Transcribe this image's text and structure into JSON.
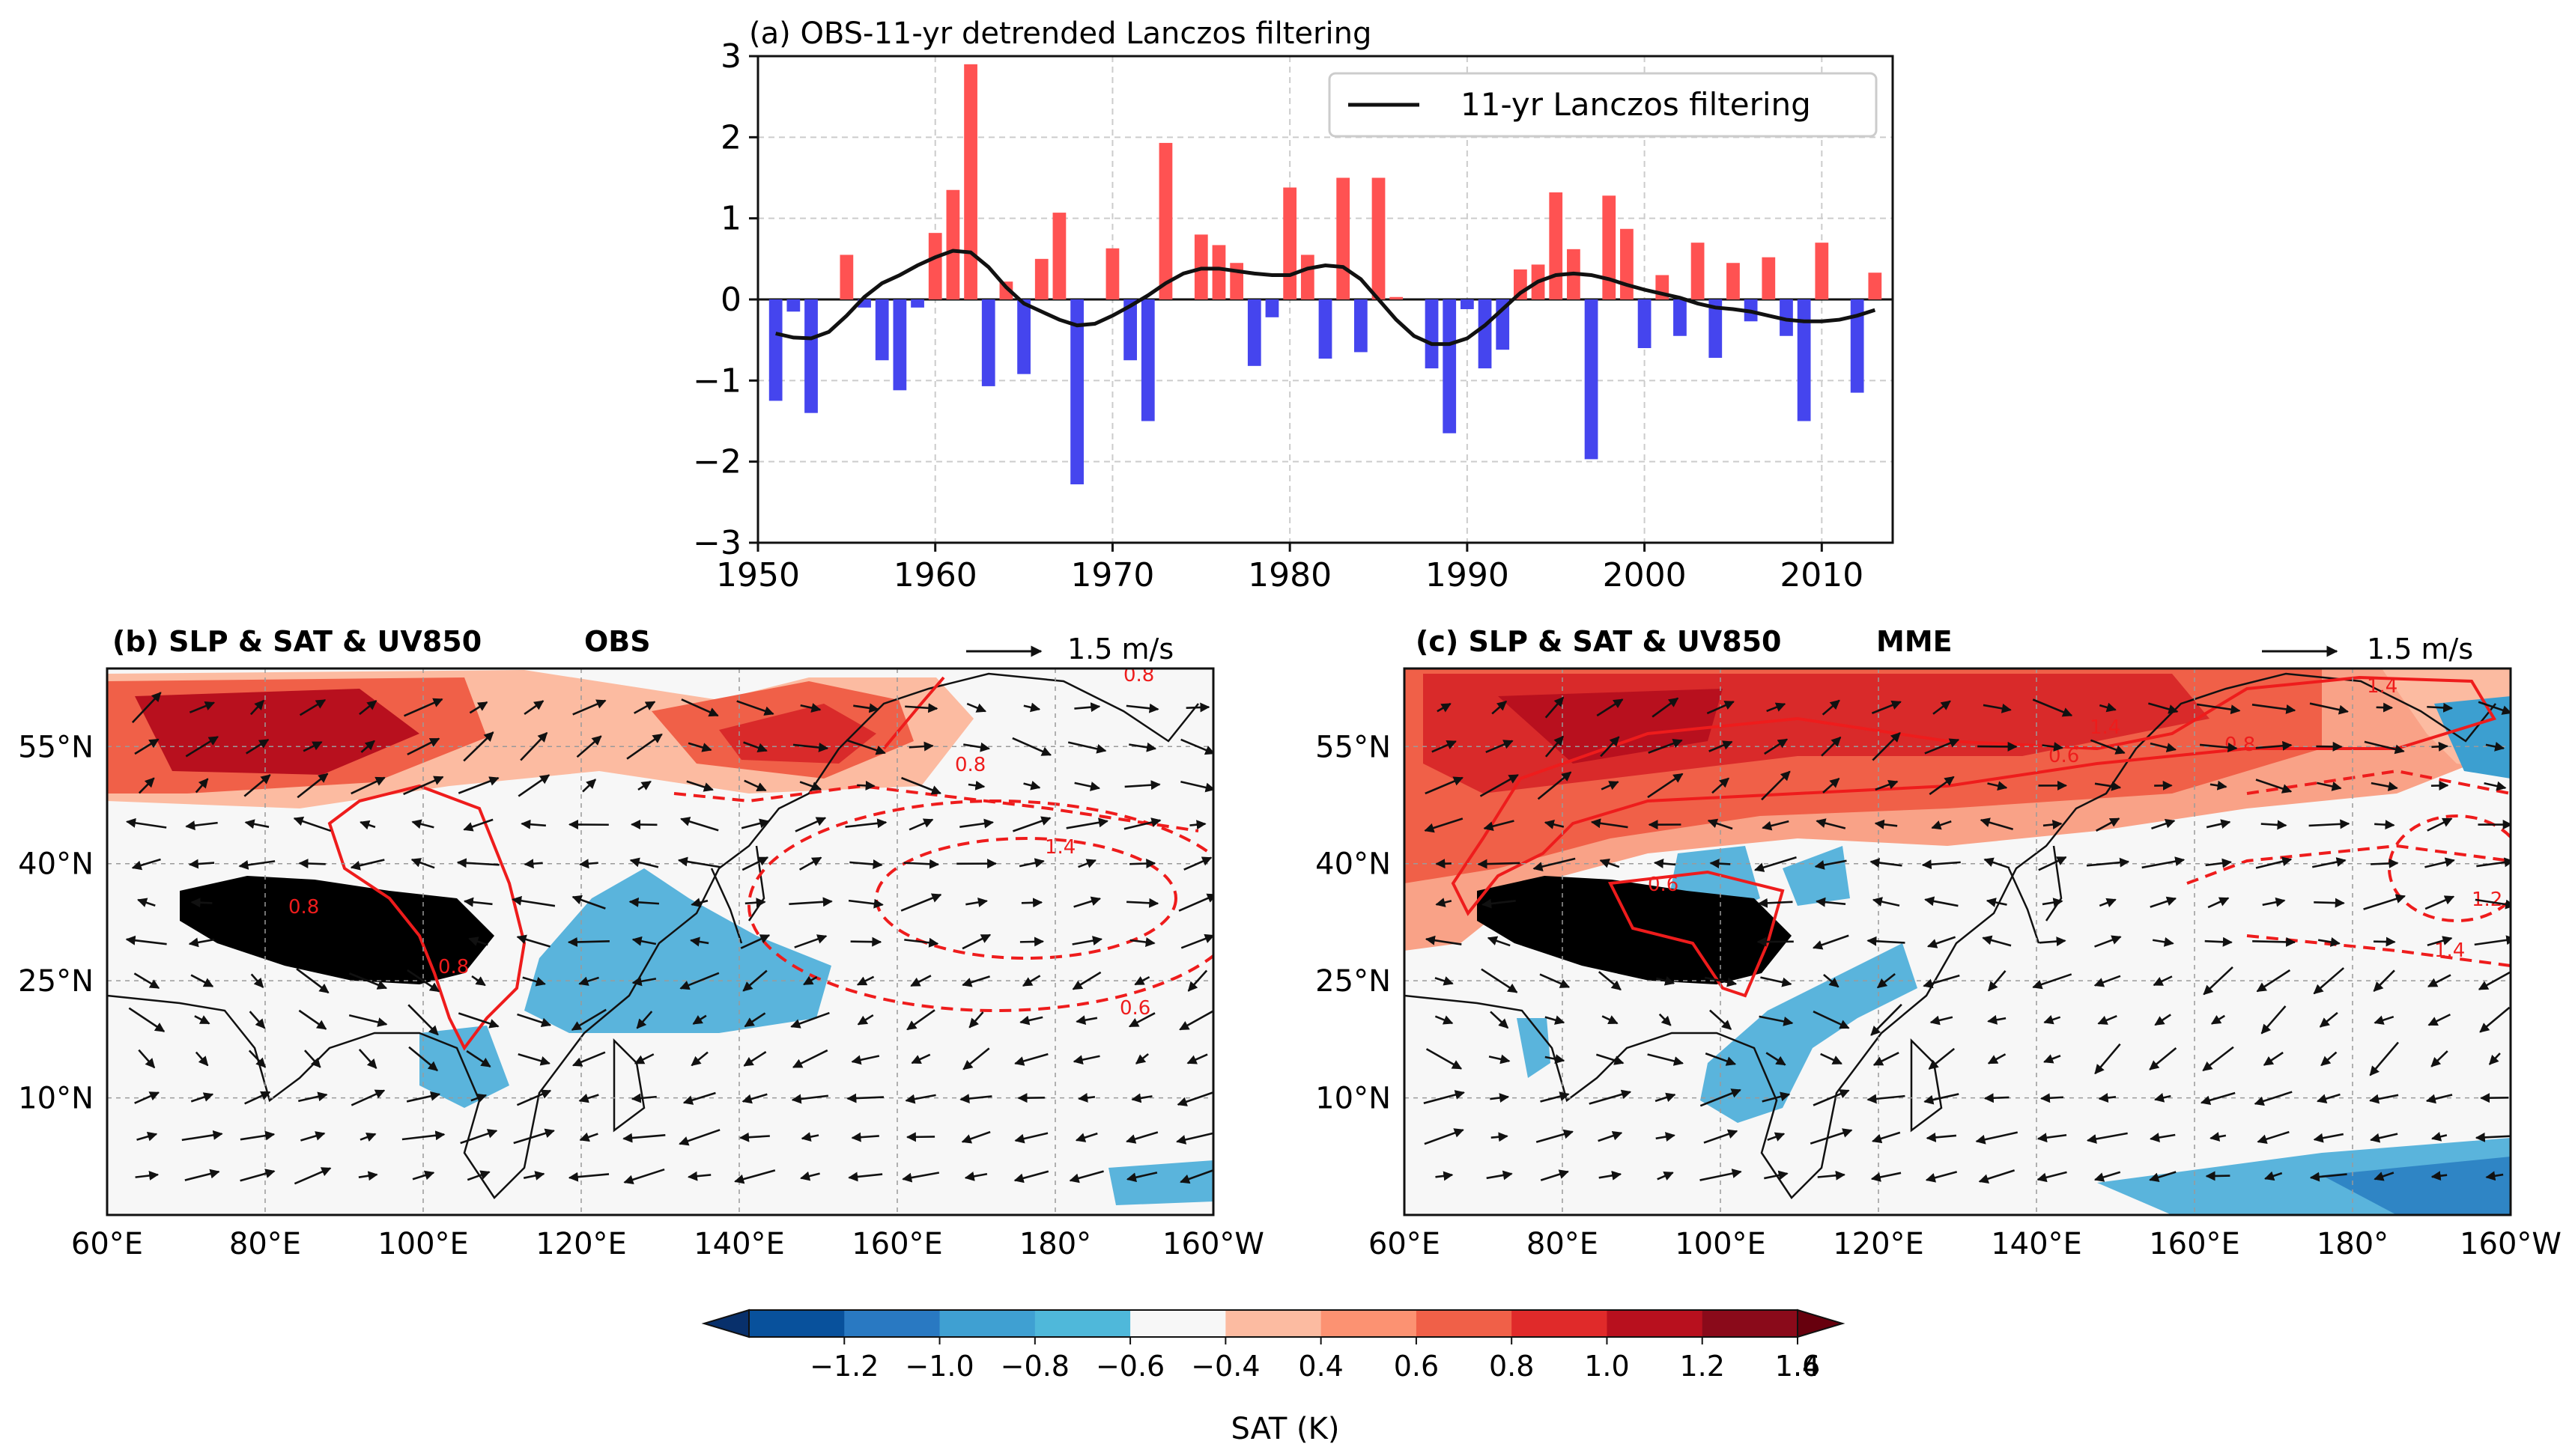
{
  "chart_data": [
    {
      "type": "bar",
      "panel": "a",
      "title": "(a) OBS-11-yr detrended Lanczos filtering",
      "xlabel": "",
      "ylabel": "",
      "xlim": [
        1950,
        2014
      ],
      "ylim": [
        -3,
        3
      ],
      "xticks": [
        1950,
        1960,
        1970,
        1980,
        1990,
        2000,
        2010
      ],
      "xtick_labels": [
        "1950",
        "1960",
        "1970",
        "1980",
        "1990",
        "2000",
        "2010"
      ],
      "yticks": [
        -3,
        -2,
        -1,
        0,
        1,
        2,
        3
      ],
      "ytick_labels": [
        "−3",
        "−2",
        "−1",
        "0",
        "1",
        "2",
        "3"
      ],
      "grid": true,
      "legend": {
        "position": "top-right",
        "entries": [
          "11-yr Lanczos filtering"
        ]
      },
      "colors": {
        "positive": "#ff5252",
        "negative": "#4545ee",
        "line": "#111111"
      },
      "x": [
        1951,
        1952,
        1953,
        1954,
        1955,
        1956,
        1957,
        1958,
        1959,
        1960,
        1961,
        1962,
        1963,
        1964,
        1965,
        1966,
        1967,
        1968,
        1969,
        1970,
        1971,
        1972,
        1973,
        1974,
        1975,
        1976,
        1977,
        1978,
        1979,
        1980,
        1981,
        1982,
        1983,
        1984,
        1985,
        1986,
        1987,
        1988,
        1989,
        1990,
        1991,
        1992,
        1993,
        1994,
        1995,
        1996,
        1997,
        1998,
        1999,
        2000,
        2001,
        2002,
        2003,
        2004,
        2005,
        2006,
        2007,
        2008,
        2009,
        2010,
        2011,
        2012,
        2013
      ],
      "values": [
        -1.25,
        -0.15,
        -1.4,
        0.0,
        0.55,
        -0.1,
        -0.75,
        -1.12,
        -0.1,
        0.82,
        1.35,
        2.9,
        -1.07,
        0.22,
        -0.92,
        0.5,
        1.07,
        -2.28,
        0.0,
        0.63,
        -0.75,
        -1.5,
        1.93,
        0.0,
        0.8,
        0.67,
        0.45,
        -0.82,
        -0.22,
        1.38,
        0.55,
        -0.73,
        1.5,
        -0.65,
        1.5,
        0.03,
        0.0,
        -0.85,
        -1.65,
        -0.12,
        -0.85,
        -0.62,
        0.37,
        0.43,
        1.32,
        0.62,
        -1.97,
        1.28,
        0.87,
        -0.6,
        0.3,
        -0.45,
        0.7,
        -0.72,
        0.45,
        -0.27,
        0.52,
        -0.45,
        -1.5,
        0.7,
        0.0,
        -1.15,
        0.33
      ],
      "series": [
        {
          "name": "11-yr Lanczos filtering",
          "x": [
            1951,
            1952,
            1953,
            1954,
            1955,
            1956,
            1957,
            1958,
            1959,
            1960,
            1961,
            1962,
            1963,
            1964,
            1965,
            1966,
            1967,
            1968,
            1969,
            1970,
            1971,
            1972,
            1973,
            1974,
            1975,
            1976,
            1977,
            1978,
            1979,
            1980,
            1981,
            1982,
            1983,
            1984,
            1985,
            1986,
            1987,
            1988,
            1989,
            1990,
            1991,
            1992,
            1993,
            1994,
            1995,
            1996,
            1997,
            1998,
            1999,
            2000,
            2001,
            2002,
            2003,
            2004,
            2005,
            2006,
            2007,
            2008,
            2009,
            2010,
            2011,
            2012,
            2013
          ],
          "values": [
            -0.42,
            -0.47,
            -0.48,
            -0.4,
            -0.2,
            0.03,
            0.2,
            0.3,
            0.42,
            0.52,
            0.6,
            0.58,
            0.4,
            0.15,
            -0.05,
            -0.15,
            -0.25,
            -0.32,
            -0.3,
            -0.2,
            -0.08,
            0.05,
            0.2,
            0.32,
            0.38,
            0.38,
            0.35,
            0.32,
            0.3,
            0.3,
            0.38,
            0.42,
            0.4,
            0.25,
            0.0,
            -0.25,
            -0.45,
            -0.55,
            -0.55,
            -0.48,
            -0.32,
            -0.12,
            0.08,
            0.22,
            0.3,
            0.32,
            0.3,
            0.25,
            0.18,
            0.12,
            0.07,
            0.02,
            -0.05,
            -0.1,
            -0.12,
            -0.15,
            -0.2,
            -0.25,
            -0.27,
            -0.27,
            -0.25,
            -0.2,
            -0.13
          ]
        }
      ]
    },
    {
      "type": "heatmap",
      "panel": "b",
      "title": "(b) SLP & SAT & UV850",
      "subtitle": "OBS",
      "quiver_key": "1.5 m/s",
      "xlim": [
        60,
        200
      ],
      "ylim": [
        -5,
        65
      ],
      "xtick_labels": [
        "60°E",
        "80°E",
        "100°E",
        "120°E",
        "140°E",
        "160°E",
        "180°",
        "160°W"
      ],
      "ytick_labels": [
        "55°N",
        "40°N",
        "25°N",
        "10°N"
      ],
      "contour_labels": [
        "0.8",
        "0.8",
        "0.8",
        "1.4",
        "0.6",
        "0.8"
      ]
    },
    {
      "type": "heatmap",
      "panel": "c",
      "title": "(c) SLP & SAT & UV850",
      "subtitle": "MME",
      "quiver_key": "1.5 m/s",
      "xlim": [
        60,
        200
      ],
      "ylim": [
        -5,
        65
      ],
      "xtick_labels": [
        "60°E",
        "80°E",
        "100°E",
        "120°E",
        "140°E",
        "160°E",
        "180°",
        "160°W"
      ],
      "ytick_labels": [
        "55°N",
        "40°N",
        "25°N",
        "10°N"
      ],
      "contour_labels": [
        "1.4",
        "1.4",
        "0.8",
        "0.6",
        "0.6",
        "1.4",
        "1.2"
      ]
    }
  ],
  "colorbar": {
    "label": "SAT (K)",
    "tick_labels": [
      "−1.2",
      "−1.0",
      "−0.8",
      "−0.6",
      "−0.4",
      "0.4",
      "0.6",
      "0.8",
      "1.0",
      "1.2",
      "1.4",
      "1.6"
    ],
    "colors": [
      "#08306b",
      "#08519c",
      "#2979c2",
      "#3fa0d2",
      "#4fb8da",
      "#f7f7f7",
      "#fcbba1",
      "#fc9272",
      "#f06048",
      "#e02a2a",
      "#b8101e",
      "#8a0a1a",
      "#67000d"
    ]
  },
  "map_colors": {
    "land_plateau": "#000000",
    "pos1": "#fcbba1",
    "pos2": "#f9a287",
    "pos3": "#f06048",
    "pos4": "#d92a2a",
    "pos5": "#b8101e",
    "neg1": "#5ab4dc",
    "neg2": "#3c9fd0",
    "neutral": "#f2f2f2",
    "contour": "#ee1c1c"
  }
}
